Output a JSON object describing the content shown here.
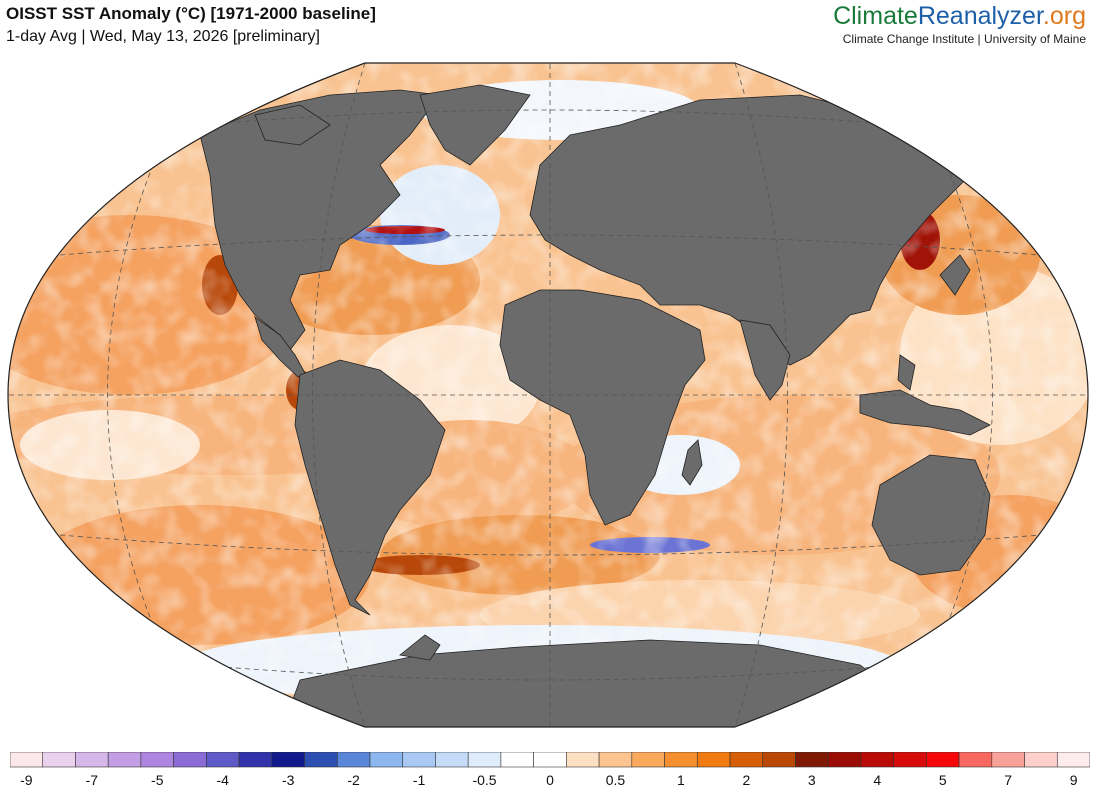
{
  "header": {
    "title": "OISST SST Anomaly (°C) [1971-2000 baseline]",
    "subtitle": "1-day Avg | Wed, May 13, 2026 [preliminary]"
  },
  "brand": {
    "part1": "Climate",
    "part2": "Reanalyzer",
    "part3": ".org",
    "subtitle": "Climate Change Institute | University of Maine"
  },
  "legend": {
    "colors": [
      "#fde8ec",
      "#ead2ef",
      "#d6b7ea",
      "#c39ee4",
      "#ae85df",
      "#8b6bd6",
      "#5e5ac8",
      "#3232aa",
      "#101a8c",
      "#2d4fb2",
      "#5a86d9",
      "#8cb8ef",
      "#a9c9f4",
      "#c4dcf8",
      "#dfecfb",
      "#ffffff",
      "#ffffff",
      "#fde0c2",
      "#fcc48f",
      "#f9a85c",
      "#f68f2f",
      "#f07b10",
      "#d55e06",
      "#b94804",
      "#7e1a04",
      "#9a0d05",
      "#b80b06",
      "#d80b0b",
      "#f6080a",
      "#f66860",
      "#f9a29a",
      "#fdd0cc",
      "#fdeceb"
    ],
    "ticks": [
      "-9",
      "-7",
      "-5",
      "-4",
      "-3",
      "-2",
      "-1",
      "-0.5",
      "0",
      "0.5",
      "1",
      "2",
      "3",
      "4",
      "5",
      "7",
      "9"
    ],
    "tick_positions": [
      1,
      3,
      5,
      7,
      9,
      11,
      13,
      15,
      17,
      19,
      21,
      23,
      25,
      27,
      29,
      31,
      33
    ]
  }
}
